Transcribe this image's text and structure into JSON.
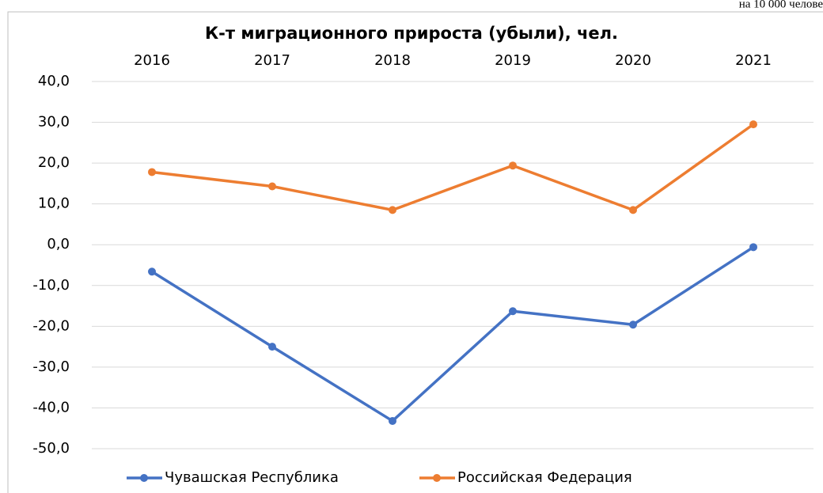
{
  "note_text": "на 10 000 челове",
  "chart_data": {
    "type": "line",
    "title": "К-т миграционного прироста (убыли), чел.",
    "categories": [
      "2016",
      "2017",
      "2018",
      "2019",
      "2020",
      "2021"
    ],
    "series": [
      {
        "name": "Чувашская Республика",
        "color": "#4472c4",
        "values": [
          -6.6,
          -25.0,
          -43.2,
          -16.3,
          -19.6,
          -0.6
        ]
      },
      {
        "name": "Российская Федерация",
        "color": "#ed7d31",
        "values": [
          17.8,
          14.3,
          8.5,
          19.4,
          8.5,
          29.5
        ]
      }
    ],
    "ylim": [
      -50,
      40
    ],
    "yticks": [
      {
        "value": -50,
        "label": "-50,0"
      },
      {
        "value": -40,
        "label": "-40,0"
      },
      {
        "value": -30,
        "label": "-30,0"
      },
      {
        "value": -20,
        "label": "-20,0"
      },
      {
        "value": -10,
        "label": "-10,0"
      },
      {
        "value": 0,
        "label": "0,0"
      },
      {
        "value": 10,
        "label": "10,0"
      },
      {
        "value": 20,
        "label": "20,0"
      },
      {
        "value": 30,
        "label": "30,0"
      },
      {
        "value": 40,
        "label": "40,0"
      }
    ],
    "grid": true,
    "legend": "bottom"
  }
}
